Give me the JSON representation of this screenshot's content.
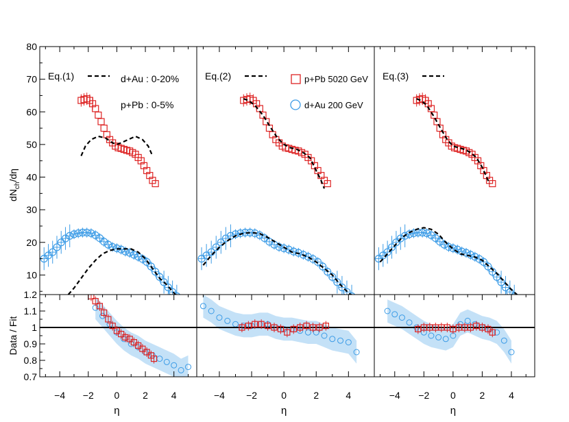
{
  "chart_data": {
    "type": "scatter",
    "y_label_top": "dN",
    "y_label_sub": "ch",
    "y_label_tail": "/dη",
    "y_label_bottom": "Data / Fit",
    "x_label": "η",
    "xlim": [
      -5.4,
      5.6
    ],
    "ylim_top": [
      4,
      80
    ],
    "ylim_bottom": [
      0.7,
      1.2
    ],
    "x_ticks": [
      -4,
      -2,
      0,
      2,
      4
    ],
    "y_ticks_top": [
      10,
      20,
      30,
      40,
      50,
      60,
      70,
      80
    ],
    "y_ticks_bottom": [
      0.7,
      0.8,
      0.9,
      1,
      1.1,
      1.2
    ],
    "legend": {
      "ppb": "p+Pb 5020 GeV",
      "dau": "d+Au 200 GeV",
      "ppb_color": "#dd2222",
      "dau_color": "#3b9be6"
    },
    "centrality_ppb": "p+Pb : 0-5%",
    "centrality_dau": "d+Au : 0-20%",
    "panels": [
      {
        "label": "Eq.(1)",
        "fit_ppb": [
          [
            -2.5,
            46.5
          ],
          [
            -2.2,
            49.5
          ],
          [
            -1.8,
            51.5
          ],
          [
            -1.3,
            52.5
          ],
          [
            -0.8,
            52
          ],
          [
            -0.3,
            50.5
          ],
          [
            0,
            50
          ],
          [
            0.3,
            50.5
          ],
          [
            0.8,
            51.5
          ],
          [
            1.3,
            52.5
          ],
          [
            1.8,
            51.5
          ],
          [
            2.2,
            49.5
          ],
          [
            2.5,
            46.5
          ]
        ],
        "fit_dau": [
          [
            -3.4,
            4
          ],
          [
            -3.0,
            6
          ],
          [
            -2.5,
            9
          ],
          [
            -2.0,
            12
          ],
          [
            -1.5,
            14.5
          ],
          [
            -1.0,
            16.5
          ],
          [
            -0.5,
            17.5
          ],
          [
            0,
            18
          ],
          [
            0.5,
            18
          ],
          [
            1.0,
            18
          ],
          [
            1.5,
            17
          ],
          [
            2.0,
            15
          ],
          [
            2.5,
            12
          ],
          [
            3.0,
            9
          ],
          [
            3.5,
            7
          ],
          [
            4.0,
            4.5
          ],
          [
            4.3,
            3.2
          ]
        ],
        "ratio_ppb": [
          [
            -1.8,
            1.19
          ],
          [
            -1.5,
            1.16
          ],
          [
            -1.2,
            1.13
          ],
          [
            -0.9,
            1.09
          ],
          [
            -0.6,
            1.05
          ],
          [
            -0.3,
            1.01
          ],
          [
            0,
            0.98
          ],
          [
            0.3,
            0.96
          ],
          [
            0.6,
            0.94
          ],
          [
            0.9,
            0.93
          ],
          [
            1.2,
            0.91
          ],
          [
            1.5,
            0.89
          ],
          [
            1.8,
            0.87
          ],
          [
            2.1,
            0.85
          ],
          [
            2.4,
            0.83
          ],
          [
            2.6,
            0.81
          ]
        ],
        "ratio_dau": [
          [
            -1.5,
            1.12
          ],
          [
            -1.0,
            1.07
          ],
          [
            -0.5,
            1.02
          ],
          [
            0,
            0.97
          ],
          [
            0.5,
            0.93
          ],
          [
            1.0,
            0.9
          ],
          [
            1.5,
            0.88
          ],
          [
            2.0,
            0.85
          ],
          [
            2.5,
            0.83
          ],
          [
            3.0,
            0.81
          ],
          [
            3.5,
            0.79
          ],
          [
            4.0,
            0.77
          ],
          [
            4.5,
            0.74
          ],
          [
            5.0,
            0.76
          ]
        ]
      },
      {
        "label": "Eq.(2)",
        "fit_ppb": [
          [
            -2.5,
            64
          ],
          [
            -2.2,
            63.5
          ],
          [
            -1.8,
            62
          ],
          [
            -1.3,
            59
          ],
          [
            -0.8,
            55
          ],
          [
            -0.4,
            52
          ],
          [
            0,
            50
          ],
          [
            0.4,
            49
          ],
          [
            0.8,
            48.5
          ],
          [
            1.2,
            47.5
          ],
          [
            1.6,
            46
          ],
          [
            2.0,
            42
          ],
          [
            2.3,
            39
          ],
          [
            2.5,
            36.5
          ]
        ],
        "fit_dau": [
          [
            -5.0,
            13
          ],
          [
            -4.5,
            16
          ],
          [
            -4.0,
            18.5
          ],
          [
            -3.5,
            20.5
          ],
          [
            -3.0,
            22
          ],
          [
            -2.5,
            22.8
          ],
          [
            -2.0,
            23
          ],
          [
            -1.5,
            22.7
          ],
          [
            -1.0,
            21.5
          ],
          [
            -0.5,
            20
          ],
          [
            0,
            18.5
          ],
          [
            0.5,
            17
          ],
          [
            1.0,
            16.5
          ],
          [
            1.5,
            15.5
          ],
          [
            2.0,
            14
          ],
          [
            2.5,
            12
          ],
          [
            3.0,
            10
          ],
          [
            3.5,
            7
          ],
          [
            4.0,
            4.5
          ],
          [
            4.3,
            3.5
          ]
        ],
        "ratio_ppb": [
          [
            -2.6,
            1.0
          ],
          [
            -2.2,
            1.01
          ],
          [
            -1.8,
            1.02
          ],
          [
            -1.4,
            1.02
          ],
          [
            -1.0,
            1.01
          ],
          [
            -0.6,
            1.0
          ],
          [
            -0.2,
            0.99
          ],
          [
            0.2,
            0.97
          ],
          [
            0.6,
            0.99
          ],
          [
            1.0,
            1.0
          ],
          [
            1.4,
            1.01
          ],
          [
            1.8,
            1.0
          ],
          [
            2.2,
            1.0
          ],
          [
            2.6,
            1.01
          ]
        ],
        "ratio_dau": [
          [
            -5.0,
            1.13
          ],
          [
            -4.5,
            1.1
          ],
          [
            -4.0,
            1.06
          ],
          [
            -3.5,
            1.04
          ],
          [
            -3.0,
            1.02
          ],
          [
            -2.5,
            1.01
          ],
          [
            -2.0,
            1.01
          ],
          [
            -1.5,
            1.02
          ],
          [
            -1.0,
            1.02
          ],
          [
            -0.5,
            1.0
          ],
          [
            0,
            0.99
          ],
          [
            0.5,
            0.99
          ],
          [
            1.0,
            0.98
          ],
          [
            1.5,
            0.97
          ],
          [
            2.0,
            0.97
          ],
          [
            2.5,
            0.95
          ],
          [
            3.0,
            0.93
          ],
          [
            3.5,
            0.92
          ],
          [
            4.0,
            0.91
          ],
          [
            4.5,
            0.85
          ]
        ]
      },
      {
        "label": "Eq.(3)",
        "fit_ppb": [
          [
            -2.5,
            64
          ],
          [
            -2.2,
            63.5
          ],
          [
            -1.8,
            62
          ],
          [
            -1.3,
            58.5
          ],
          [
            -0.8,
            54.5
          ],
          [
            -0.4,
            51.5
          ],
          [
            0,
            49.5
          ],
          [
            0.4,
            49
          ],
          [
            0.8,
            48.5
          ],
          [
            1.2,
            47.5
          ],
          [
            1.6,
            46
          ],
          [
            2.0,
            43
          ],
          [
            2.3,
            40
          ],
          [
            2.5,
            38
          ]
        ],
        "fit_dau": [
          [
            -5.0,
            14
          ],
          [
            -4.5,
            16.5
          ],
          [
            -4.0,
            19
          ],
          [
            -3.5,
            21.5
          ],
          [
            -3.0,
            23
          ],
          [
            -2.5,
            24
          ],
          [
            -2.0,
            24.5
          ],
          [
            -1.5,
            24
          ],
          [
            -1.0,
            22.5
          ],
          [
            -0.5,
            20
          ],
          [
            0,
            18
          ],
          [
            0.5,
            16.5
          ],
          [
            1.0,
            16
          ],
          [
            1.5,
            15.5
          ],
          [
            2.0,
            14.5
          ],
          [
            2.5,
            12.5
          ],
          [
            3.0,
            10.5
          ],
          [
            3.5,
            8
          ],
          [
            4.0,
            5.5
          ],
          [
            4.5,
            3.5
          ]
        ],
        "ratio_ppb": [
          [
            -2.4,
            0.99
          ],
          [
            -2.0,
            1.0
          ],
          [
            -1.6,
            1.0
          ],
          [
            -1.2,
            1.0
          ],
          [
            -0.8,
            1.0
          ],
          [
            -0.4,
            1.0
          ],
          [
            0,
            0.99
          ],
          [
            0.4,
            1.0
          ],
          [
            0.8,
            1.0
          ],
          [
            1.2,
            1.0
          ],
          [
            1.6,
            1.01
          ],
          [
            2.0,
            1.0
          ],
          [
            2.4,
            0.99
          ],
          [
            2.7,
            0.97
          ]
        ],
        "ratio_dau": [
          [
            -4.5,
            1.1
          ],
          [
            -4.0,
            1.08
          ],
          [
            -3.5,
            1.06
          ],
          [
            -3.0,
            1.03
          ],
          [
            -2.5,
            1.0
          ],
          [
            -2.0,
            0.97
          ],
          [
            -1.5,
            0.95
          ],
          [
            -1.0,
            0.94
          ],
          [
            -0.5,
            0.93
          ],
          [
            0,
            0.95
          ],
          [
            0.5,
            1.02
          ],
          [
            1.0,
            1.04
          ],
          [
            1.5,
            1.02
          ],
          [
            2.0,
            1.0
          ],
          [
            2.5,
            0.99
          ],
          [
            3.0,
            0.97
          ],
          [
            3.5,
            0.92
          ],
          [
            4.0,
            0.85
          ]
        ]
      }
    ],
    "data_ppb": [
      [
        -2.5,
        63.5
      ],
      [
        -2.3,
        63.8
      ],
      [
        -2.1,
        64
      ],
      [
        -1.9,
        63.5
      ],
      [
        -1.7,
        62.5
      ],
      [
        -1.5,
        61
      ],
      [
        -1.3,
        59
      ],
      [
        -1.1,
        57
      ],
      [
        -0.9,
        55
      ],
      [
        -0.7,
        53
      ],
      [
        -0.5,
        51.5
      ],
      [
        -0.3,
        50.5
      ],
      [
        -0.1,
        49.5
      ],
      [
        0.1,
        49
      ],
      [
        0.3,
        48.8
      ],
      [
        0.5,
        48.5
      ],
      [
        0.7,
        48.2
      ],
      [
        0.9,
        48
      ],
      [
        1.1,
        47.5
      ],
      [
        1.3,
        47
      ],
      [
        1.5,
        46
      ],
      [
        1.7,
        45
      ],
      [
        1.9,
        43.5
      ],
      [
        2.1,
        42
      ],
      [
        2.3,
        40.5
      ],
      [
        2.5,
        39
      ],
      [
        2.7,
        38
      ]
    ],
    "data_dau": [
      [
        -5.1,
        15
      ],
      [
        -4.8,
        16
      ],
      [
        -4.5,
        17
      ],
      [
        -4.2,
        18.5
      ],
      [
        -3.9,
        20
      ],
      [
        -3.6,
        21.2
      ],
      [
        -3.3,
        22
      ],
      [
        -3.0,
        22.5
      ],
      [
        -2.7,
        22.8
      ],
      [
        -2.4,
        23
      ],
      [
        -2.1,
        23
      ],
      [
        -1.8,
        22.8
      ],
      [
        -1.5,
        22.2
      ],
      [
        -1.2,
        21.3
      ],
      [
        -0.9,
        20.2
      ],
      [
        -0.6,
        19.3
      ],
      [
        -0.3,
        18.6
      ],
      [
        0,
        18.2
      ],
      [
        0.3,
        17.8
      ],
      [
        0.6,
        17.2
      ],
      [
        0.9,
        16.8
      ],
      [
        1.2,
        16.2
      ],
      [
        1.5,
        15.6
      ],
      [
        1.8,
        14.9
      ],
      [
        2.1,
        14
      ],
      [
        2.4,
        12.6
      ],
      [
        2.7,
        11
      ],
      [
        3.0,
        9.4
      ],
      [
        3.3,
        7.8
      ],
      [
        3.6,
        6.2
      ],
      [
        3.9,
        4.8
      ],
      [
        4.2,
        3.5
      ]
    ]
  }
}
